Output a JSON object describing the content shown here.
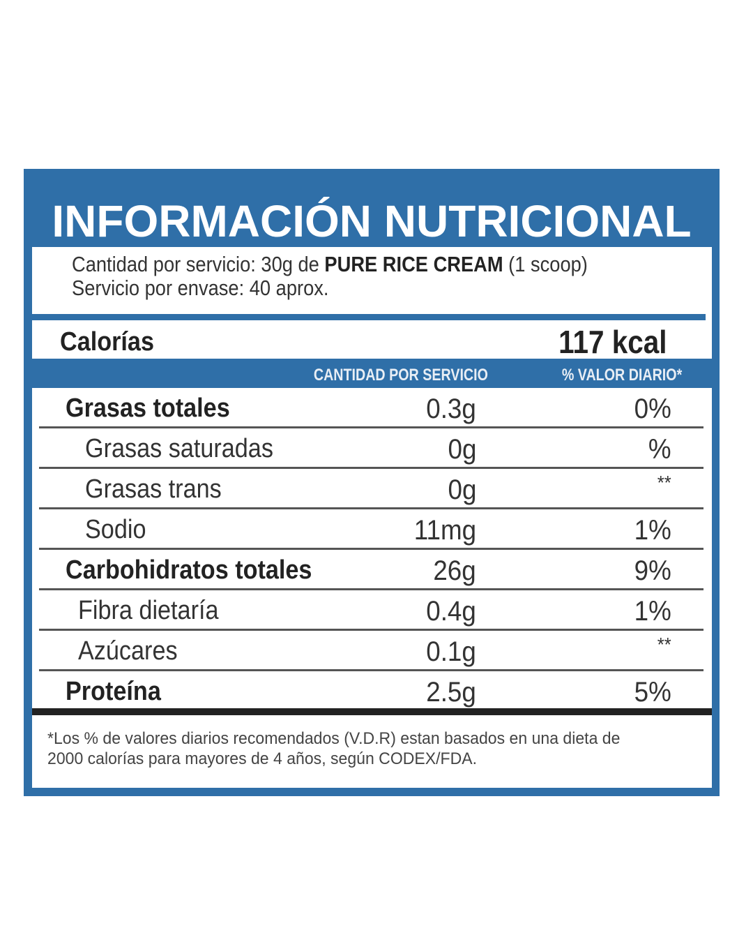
{
  "label": {
    "title": "INFORMACIÓN NUTRICIONAL",
    "serving": {
      "line1_prefix": "Cantidad por servicio: 30g de ",
      "product_name": "PURE RICE CREAM",
      "line1_suffix": " (1 scoop)",
      "line2": "Servicio por envase: 40 aprox."
    },
    "calories": {
      "label": "Calorías",
      "value": "117 kcal"
    },
    "columns": {
      "amount": "CANTIDAD POR SERVICIO",
      "daily_value": "% VALOR DIARIO*"
    },
    "rows": [
      {
        "name": "Grasas totales",
        "amount": "0.3g",
        "dv": "0%",
        "level": "main"
      },
      {
        "name": "Grasas saturadas",
        "amount": "0g",
        "dv": "%",
        "level": "sub"
      },
      {
        "name": "Grasas trans",
        "amount": "0g",
        "dv": "**",
        "level": "sub"
      },
      {
        "name": "Sodio",
        "amount": "11mg",
        "dv": "1%",
        "level": "sub"
      },
      {
        "name": "Carbohidratos totales",
        "amount": "26g",
        "dv": "9%",
        "level": "main"
      },
      {
        "name": "Fibra dietaría",
        "amount": "0.4g",
        "dv": "1%",
        "level": "sub2"
      },
      {
        "name": "Azúcares",
        "amount": "0.1g",
        "dv": "**",
        "level": "sub2"
      },
      {
        "name": "Proteína",
        "amount": "2.5g",
        "dv": "5%",
        "level": "main"
      }
    ],
    "footnote": {
      "line1": "*Los % de valores diarios recomendados (V.D.R) estan basados en una dieta de",
      "line2": "2000 calorías para mayores de 4 años, según CODEX/FDA."
    },
    "colors": {
      "brand_blue": "#2f6fa8",
      "text_dark": "#222222",
      "rule_black": "#222222"
    }
  }
}
